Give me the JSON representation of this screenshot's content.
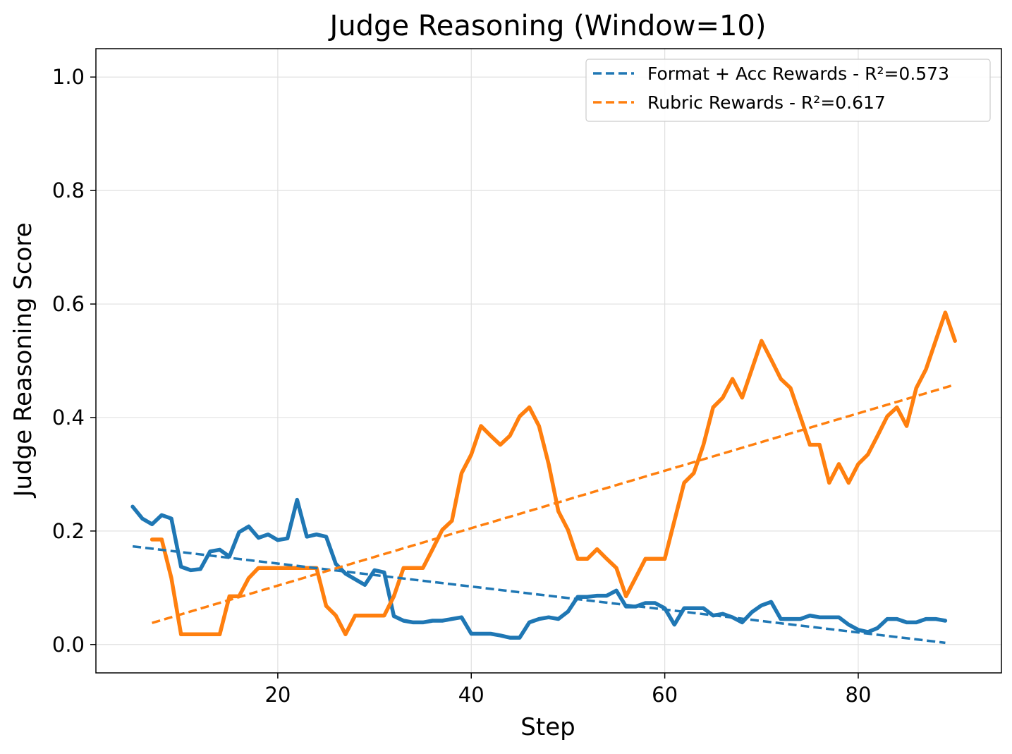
{
  "chart_data": {
    "type": "line",
    "title": "Judge Reasoning (Window=10)",
    "xlabel": "Step",
    "ylabel": "Judge Reasoning Score",
    "xlim": [
      1.2,
      94.8
    ],
    "ylim": [
      -0.05,
      1.05
    ],
    "xticks": [
      20,
      40,
      60,
      80
    ],
    "yticks": [
      0.0,
      0.2,
      0.4,
      0.6,
      0.8,
      1.0
    ],
    "xtick_labels": [
      "20",
      "40",
      "60",
      "80"
    ],
    "ytick_labels": [
      "0.0",
      "0.2",
      "0.4",
      "0.6",
      "0.8",
      "1.0"
    ],
    "grid": true,
    "legend_position": "upper right",
    "series": [
      {
        "name": "Format + Acc Rewards",
        "color": "#1f77b4",
        "x": [
          5,
          6,
          7,
          8,
          9,
          10,
          11,
          12,
          13,
          14,
          15,
          16,
          17,
          18,
          19,
          20,
          21,
          22,
          23,
          24,
          25,
          26,
          27,
          28,
          29,
          30,
          31,
          32,
          33,
          34,
          35,
          36,
          37,
          38,
          39,
          40,
          41,
          42,
          43,
          44,
          45,
          46,
          47,
          48,
          49,
          50,
          51,
          52,
          53,
          54,
          55,
          56,
          57,
          58,
          59,
          60,
          61,
          62,
          63,
          64,
          65,
          66,
          67,
          68,
          69,
          70,
          71,
          72,
          73,
          74,
          75,
          76,
          77,
          78,
          79,
          80,
          81,
          82,
          83,
          84,
          85,
          86,
          87,
          88,
          89
        ],
        "y": [
          0.243,
          0.222,
          0.212,
          0.228,
          0.222,
          0.137,
          0.131,
          0.133,
          0.164,
          0.167,
          0.155,
          0.198,
          0.208,
          0.188,
          0.194,
          0.184,
          0.187,
          0.255,
          0.19,
          0.194,
          0.19,
          0.142,
          0.125,
          0.115,
          0.105,
          0.131,
          0.127,
          0.05,
          0.042,
          0.039,
          0.039,
          0.042,
          0.042,
          0.045,
          0.048,
          0.019,
          0.019,
          0.019,
          0.016,
          0.012,
          0.012,
          0.039,
          0.045,
          0.048,
          0.045,
          0.058,
          0.084,
          0.084,
          0.086,
          0.086,
          0.095,
          0.067,
          0.067,
          0.073,
          0.073,
          0.064,
          0.035,
          0.064,
          0.064,
          0.064,
          0.051,
          0.054,
          0.048,
          0.039,
          0.057,
          0.069,
          0.075,
          0.045,
          0.045,
          0.045,
          0.051,
          0.048,
          0.048,
          0.048,
          0.035,
          0.026,
          0.022,
          0.029,
          0.045,
          0.045,
          0.039,
          0.039,
          0.045,
          0.045,
          0.042
        ]
      },
      {
        "name": "Rubric Rewards",
        "color": "#ff7f0e",
        "x": [
          7,
          8,
          9,
          10,
          11,
          12,
          13,
          14,
          15,
          16,
          17,
          18,
          19,
          20,
          21,
          22,
          23,
          24,
          25,
          26,
          27,
          28,
          29,
          30,
          31,
          32,
          33,
          34,
          35,
          36,
          37,
          38,
          39,
          40,
          41,
          42,
          43,
          44,
          45,
          46,
          47,
          48,
          49,
          50,
          51,
          52,
          53,
          54,
          55,
          56,
          57,
          58,
          59,
          60,
          61,
          62,
          63,
          64,
          65,
          66,
          67,
          68,
          69,
          70,
          71,
          72,
          73,
          74,
          75,
          76,
          77,
          78,
          79,
          80,
          81,
          82,
          83,
          84,
          85,
          86,
          87,
          88,
          89,
          90
        ],
        "y": [
          0.185,
          0.185,
          0.117,
          0.018,
          0.018,
          0.018,
          0.018,
          0.018,
          0.085,
          0.085,
          0.117,
          0.135,
          0.135,
          0.135,
          0.135,
          0.135,
          0.135,
          0.135,
          0.068,
          0.051,
          0.018,
          0.051,
          0.051,
          0.051,
          0.051,
          0.085,
          0.135,
          0.135,
          0.135,
          0.168,
          0.202,
          0.218,
          0.302,
          0.335,
          0.385,
          0.368,
          0.352,
          0.368,
          0.402,
          0.418,
          0.385,
          0.318,
          0.235,
          0.202,
          0.151,
          0.151,
          0.168,
          0.151,
          0.135,
          0.085,
          0.118,
          0.151,
          0.151,
          0.151,
          0.218,
          0.285,
          0.302,
          0.352,
          0.418,
          0.435,
          0.468,
          0.435,
          0.485,
          0.535,
          0.502,
          0.468,
          0.452,
          0.402,
          0.352,
          0.352,
          0.285,
          0.318,
          0.285,
          0.318,
          0.335,
          0.368,
          0.402,
          0.418,
          0.385,
          0.452,
          0.485,
          0.535,
          0.585,
          0.535
        ]
      }
    ],
    "trendlines": [
      {
        "label": "Format + Acc Rewards - R²=0.573",
        "color": "#1f77b4",
        "x": [
          5,
          89
        ],
        "y": [
          0.173,
          0.003
        ]
      },
      {
        "label": "Rubric Rewards - R²=0.617",
        "color": "#ff7f0e",
        "x": [
          7,
          90
        ],
        "y": [
          0.038,
          0.458
        ]
      }
    ]
  }
}
